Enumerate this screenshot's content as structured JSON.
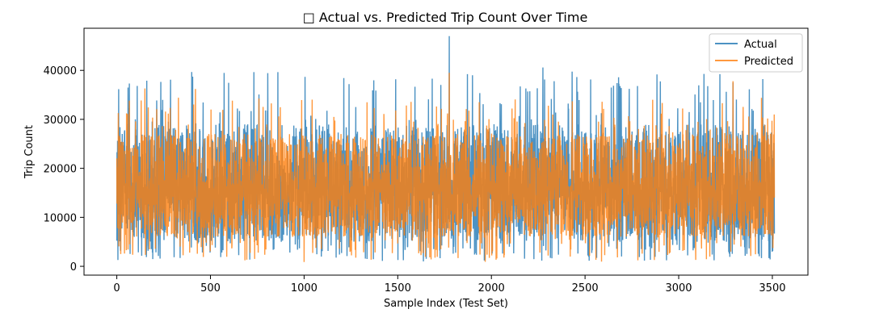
{
  "chart_data": {
    "type": "line",
    "title": "□ Actual vs. Predicted Trip Count Over Time",
    "xlabel": "Sample Index (Test Set)",
    "ylabel": "Trip Count",
    "xlim": [
      -175,
      3690
    ],
    "ylim": [
      -1800,
      48600
    ],
    "x_ticks": [
      0,
      500,
      1000,
      1500,
      2000,
      2500,
      3000,
      3500
    ],
    "y_ticks": [
      0,
      10000,
      20000,
      30000,
      40000
    ],
    "x_tick_labels": [
      "0",
      "500",
      "1000",
      "1500",
      "2000",
      "2500",
      "3000",
      "3500"
    ],
    "y_tick_labels": [
      "0",
      "10000",
      "20000",
      "30000",
      "40000"
    ],
    "n_samples": 3512,
    "grid": false,
    "legend_position": "upper right",
    "series": [
      {
        "name": "Actual",
        "color": "#1f77b4",
        "alpha": 0.8,
        "summary": {
          "min": 1000,
          "max": 47000,
          "typical_low": 5000,
          "typical_high": 29000
        },
        "notable_points": [
          {
            "x": 60,
            "y": 36500
          },
          {
            "x": 160,
            "y": 37900
          },
          {
            "x": 1240,
            "y": 37200
          },
          {
            "x": 1775,
            "y": 47000
          },
          {
            "x": 2275,
            "y": 40600
          },
          {
            "x": 2640,
            "y": 36500
          },
          {
            "x": 2780,
            "y": 36800
          },
          {
            "x": 3290,
            "y": 37500
          }
        ]
      },
      {
        "name": "Predicted",
        "color": "#ff7f0e",
        "alpha": 0.8,
        "summary": {
          "min": 800,
          "max": 39500,
          "typical_low": 6000,
          "typical_high": 27000
        },
        "notable_points": [
          {
            "x": 1775,
            "y": 39500
          },
          {
            "x": 150,
            "y": 36300
          },
          {
            "x": 420,
            "y": 36200
          },
          {
            "x": 3290,
            "y": 37800
          }
        ]
      }
    ]
  }
}
